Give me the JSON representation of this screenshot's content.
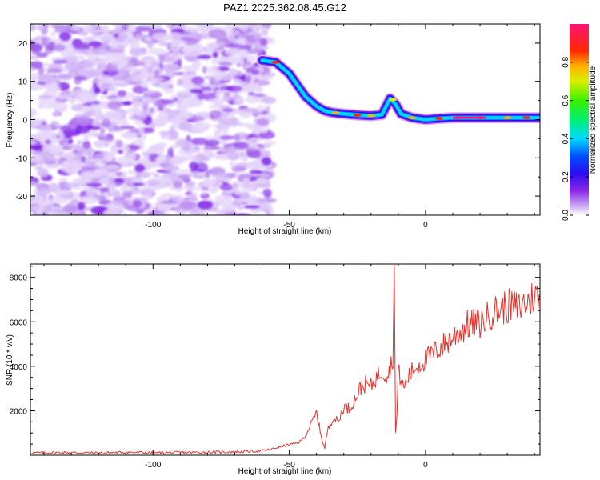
{
  "chart_data": [
    {
      "type": "heatmap",
      "title": "PAZ1.2025.362.08.45.G12",
      "xlabel": "Height of straight line (km)",
      "ylabel": "Frequency (Hz)",
      "xlim": [
        -145,
        42
      ],
      "ylim": [
        -25,
        25
      ],
      "x_ticks": [
        -100,
        -50,
        0
      ],
      "y_ticks": [
        -20,
        -10,
        0,
        10,
        20
      ],
      "grid": false,
      "noise_region": {
        "x": [
          -145,
          -57
        ],
        "y": [
          -25,
          25
        ]
      },
      "ridge": {
        "x": [
          -60,
          -55,
          -50,
          -47,
          -44,
          -40,
          -37,
          -34,
          -30,
          -25,
          -20,
          -16,
          -13,
          -11,
          -9,
          -5,
          0,
          5,
          10,
          20,
          30,
          42
        ],
        "y": [
          15.5,
          15,
          12,
          9,
          6,
          3.5,
          2.3,
          1.8,
          1.5,
          1.2,
          1.0,
          1.3,
          5.5,
          4,
          1.5,
          0.5,
          0,
          0.3,
          0.5,
          0.5,
          0.5,
          0.5
        ]
      },
      "colorbar": {
        "label": "Normalized spectral amplitude",
        "range": [
          0,
          1
        ],
        "ticks": [
          "0.0",
          "0.2",
          "0.4",
          "0.6",
          "0.8"
        ]
      }
    },
    {
      "type": "line",
      "xlabel": "Height of straight line (km)",
      "ylabel": "SNR (10 * v/v)",
      "xlim": [
        -145,
        42
      ],
      "ylim": [
        0,
        8600
      ],
      "x_ticks": [
        -100,
        -50,
        0
      ],
      "y_ticks": [
        2000,
        4000,
        6000,
        8000
      ],
      "grid": false,
      "series": [
        {
          "name": "SNR",
          "color": "#e8302a",
          "x": [
            -145,
            -140,
            -130,
            -120,
            -110,
            -100,
            -90,
            -80,
            -70,
            -62,
            -57,
            -55,
            -52,
            -50,
            -48,
            -46,
            -44,
            -42,
            -40,
            -38,
            -37,
            -36,
            -34,
            -32,
            -30,
            -28,
            -26,
            -24,
            -22,
            -20,
            -18,
            -16,
            -14,
            -13,
            -12,
            -11.5,
            -11,
            -10.5,
            -10,
            -8,
            -6,
            -4,
            -2,
            0,
            2,
            4,
            6,
            8,
            10,
            12,
            14,
            16,
            18,
            20,
            22,
            24,
            26,
            28,
            30,
            32,
            34,
            36,
            38,
            40,
            42
          ],
          "values": [
            100,
            110,
            120,
            100,
            130,
            110,
            120,
            130,
            150,
            180,
            250,
            320,
            420,
            480,
            520,
            600,
            900,
            1400,
            1900,
            700,
            300,
            1100,
            1700,
            1500,
            2200,
            2100,
            2500,
            3000,
            3200,
            3100,
            3500,
            3800,
            3600,
            3900,
            4400,
            8500,
            1000,
            1800,
            3800,
            3000,
            3600,
            3900,
            4100,
            4300,
            4500,
            4700,
            4900,
            5100,
            5300,
            5500,
            5700,
            5900,
            5900,
            5900,
            6100,
            6400,
            6500,
            6600,
            6700,
            6700,
            6600,
            6800,
            6900,
            7200,
            7000
          ]
        }
      ]
    }
  ]
}
